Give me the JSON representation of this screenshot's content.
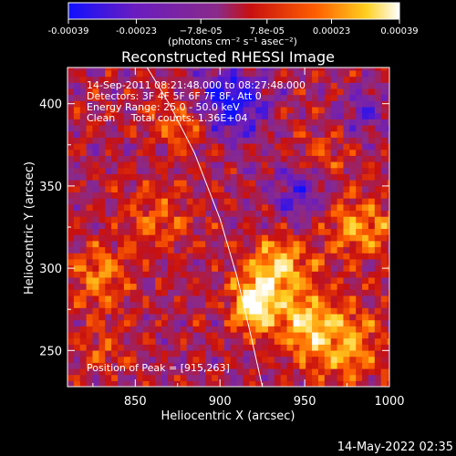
{
  "chart_data": {
    "type": "heatmap",
    "title": "Reconstructed RHESSI Image",
    "xlabel": "Heliocentric X (arcsec)",
    "ylabel": "Heliocentric Y (arcsec)",
    "xlim": [
      810,
      1000
    ],
    "ylim": [
      228,
      422
    ],
    "x_ticks": [
      "850",
      "900",
      "950",
      "1000"
    ],
    "x_tick_values": [
      850,
      900,
      950,
      1000
    ],
    "y_ticks": [
      "250",
      "300",
      "350",
      "400"
    ],
    "y_tick_values": [
      250,
      300,
      350,
      400
    ],
    "colorbar": {
      "ticks": [
        "-0.00039",
        "-0.00023",
        "−7.8e-05",
        "7.8e-05",
        "0.00023",
        "0.00039"
      ],
      "tick_values": [
        -0.00039,
        -0.00023,
        -7.8e-05,
        7.8e-05,
        0.00023,
        0.00039
      ],
      "range": [
        -0.00039,
        0.00039
      ],
      "units_label": "(photons cm⁻² s⁻¹ asec⁻²)",
      "colors": [
        "#1010ff",
        "#6a1cc0",
        "#8a2a8a",
        "#c81010",
        "#ff6000",
        "#ffd020",
        "#ffffff"
      ]
    },
    "annotations": [
      "14-Sep-2011 08:21:48.000 to 08:27:48.000",
      "Detectors: 3F 4F 5F 6F 7F 8F, Att 0",
      "Energy Range: 25.0 - 50.0 keV",
      "Clean     Total counts: 1.36E+04"
    ],
    "peak_label": "Position of Peak = [915,263]",
    "peak": {
      "x": 915,
      "y": 263
    },
    "limb_curve": {
      "x": [
        857,
        870,
        885,
        900,
        910,
        918,
        925
      ],
      "y": [
        422,
        400,
        370,
        330,
        295,
        260,
        228
      ]
    },
    "sources": [
      {
        "x": 920,
        "y": 278,
        "sx": 9,
        "sy": 11,
        "amp": 1.0
      },
      {
        "x": 935,
        "y": 300,
        "sx": 14,
        "sy": 13,
        "amp": 0.75
      },
      {
        "x": 950,
        "y": 265,
        "sx": 12,
        "sy": 14,
        "amp": 0.7
      },
      {
        "x": 975,
        "y": 255,
        "sx": 14,
        "sy": 16,
        "amp": 0.6
      },
      {
        "x": 985,
        "y": 325,
        "sx": 16,
        "sy": 14,
        "amp": 0.55
      },
      {
        "x": 880,
        "y": 390,
        "sx": 15,
        "sy": 12,
        "amp": 0.45
      },
      {
        "x": 865,
        "y": 330,
        "sx": 14,
        "sy": 14,
        "amp": 0.4
      },
      {
        "x": 830,
        "y": 295,
        "sx": 12,
        "sy": 14,
        "amp": 0.5
      },
      {
        "x": 830,
        "y": 250,
        "sx": 10,
        "sy": 10,
        "amp": 0.3
      },
      {
        "x": 960,
        "y": 370,
        "sx": 12,
        "sy": 10,
        "amp": 0.3
      }
    ],
    "negative_regions": [
      {
        "x": 905,
        "y": 400,
        "sx": 15,
        "sy": 15,
        "amp": 0.9
      },
      {
        "x": 945,
        "y": 345,
        "sx": 12,
        "sy": 12,
        "amp": 0.5
      },
      {
        "x": 985,
        "y": 395,
        "sx": 10,
        "sy": 10,
        "amp": 0.4
      }
    ]
  },
  "timestamp": "14-May-2022 02:35"
}
